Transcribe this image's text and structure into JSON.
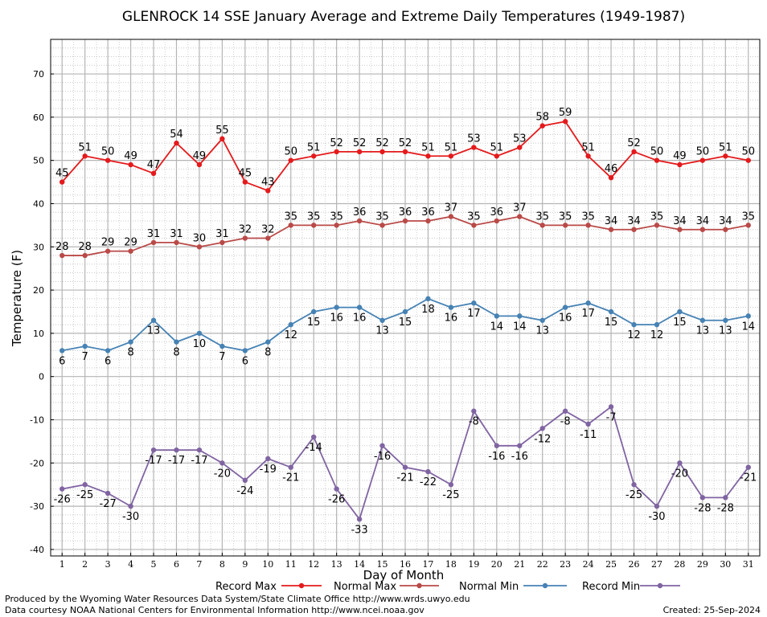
{
  "chart_data": {
    "type": "line",
    "title": "GLENROCK 14 SSE January Average and Extreme Daily Temperatures (1949-1987)",
    "xlabel": "Day of Month",
    "ylabel": "Temperature (F)",
    "xlim": [
      0.5,
      31.5
    ],
    "ylim": [
      -41.5,
      78
    ],
    "yticks": [
      -40,
      -30,
      -20,
      -10,
      0,
      10,
      20,
      30,
      40,
      50,
      60,
      70
    ],
    "x": [
      1,
      2,
      3,
      4,
      5,
      6,
      7,
      8,
      9,
      10,
      11,
      12,
      13,
      14,
      15,
      16,
      17,
      18,
      19,
      20,
      21,
      22,
      23,
      24,
      25,
      26,
      27,
      28,
      29,
      30,
      31
    ],
    "grid": true,
    "legend_position": "bottom",
    "series": [
      {
        "name": "Record Max",
        "color": "#e41a1c",
        "values": [
          45,
          51,
          50,
          49,
          47,
          54,
          49,
          55,
          45,
          43,
          50,
          51,
          52,
          52,
          52,
          52,
          51,
          51,
          53,
          51,
          53,
          58,
          59,
          51,
          46,
          52,
          50,
          49,
          50,
          51,
          50
        ]
      },
      {
        "name": "Normal Max",
        "color": "#b94a48",
        "values": [
          28,
          28,
          29,
          29,
          31,
          31,
          30,
          31,
          32,
          32,
          35,
          35,
          35,
          36,
          35,
          36,
          36,
          37,
          35,
          36,
          37,
          35,
          35,
          35,
          34,
          34,
          35,
          34,
          34,
          34,
          35
        ]
      },
      {
        "name": "Normal Min",
        "color": "#4682b4",
        "values": [
          6,
          7,
          6,
          8,
          13,
          8,
          10,
          7,
          6,
          8,
          12,
          15,
          16,
          16,
          13,
          15,
          18,
          16,
          17,
          14,
          14,
          13,
          16,
          17,
          15,
          12,
          12,
          15,
          13,
          13,
          14
        ]
      },
      {
        "name": "Record Min",
        "color": "#8064a2",
        "values": [
          -26,
          -25,
          -27,
          -30,
          -17,
          -17,
          -17,
          -20,
          -24,
          -19,
          -21,
          -14,
          -26,
          -33,
          -16,
          -21,
          -22,
          -25,
          -8,
          -16,
          -16,
          -12,
          -8,
          -11,
          -7,
          -25,
          -30,
          -20,
          -28,
          -28,
          -21
        ]
      }
    ]
  },
  "footer": {
    "produced_by": "Produced by the Wyoming Water Resources Data System/State Climate Office http://www.wrds.uwyo.edu",
    "data_courtesy": "Data courtesy NOAA National Centers for Environmental Information http://www.ncei.noaa.gov",
    "created": "Created:  25-Sep-2024"
  }
}
